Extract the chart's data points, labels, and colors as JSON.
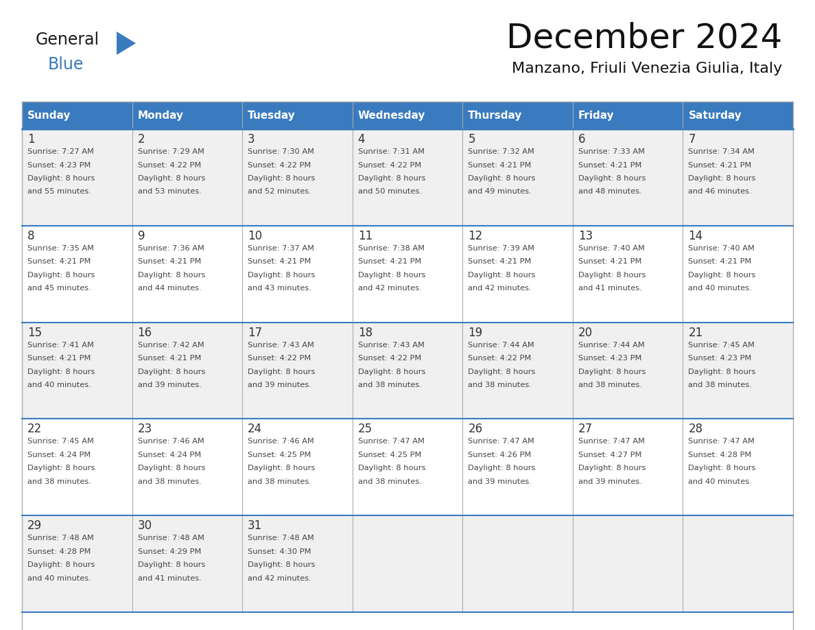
{
  "title": "December 2024",
  "subtitle": "Manzano, Friuli Venezia Giulia, Italy",
  "days_of_week": [
    "Sunday",
    "Monday",
    "Tuesday",
    "Wednesday",
    "Thursday",
    "Friday",
    "Saturday"
  ],
  "header_bg": "#3a7bbf",
  "header_text": "#ffffff",
  "row_bg_odd": "#f0f0f0",
  "row_bg_even": "#ffffff",
  "cell_border": "#aaaaaa",
  "day_num_color": "#333333",
  "text_color": "#444444",
  "title_color": "#111111",
  "logo_general_color": "#1a1a1a",
  "logo_blue_color": "#3a7bbf",
  "weeks": [
    [
      {
        "day": 1,
        "sunrise": "7:27 AM",
        "sunset": "4:23 PM",
        "daylight": "8 hours and 55 minutes."
      },
      {
        "day": 2,
        "sunrise": "7:29 AM",
        "sunset": "4:22 PM",
        "daylight": "8 hours and 53 minutes."
      },
      {
        "day": 3,
        "sunrise": "7:30 AM",
        "sunset": "4:22 PM",
        "daylight": "8 hours and 52 minutes."
      },
      {
        "day": 4,
        "sunrise": "7:31 AM",
        "sunset": "4:22 PM",
        "daylight": "8 hours and 50 minutes."
      },
      {
        "day": 5,
        "sunrise": "7:32 AM",
        "sunset": "4:21 PM",
        "daylight": "8 hours and 49 minutes."
      },
      {
        "day": 6,
        "sunrise": "7:33 AM",
        "sunset": "4:21 PM",
        "daylight": "8 hours and 48 minutes."
      },
      {
        "day": 7,
        "sunrise": "7:34 AM",
        "sunset": "4:21 PM",
        "daylight": "8 hours and 46 minutes."
      }
    ],
    [
      {
        "day": 8,
        "sunrise": "7:35 AM",
        "sunset": "4:21 PM",
        "daylight": "8 hours and 45 minutes."
      },
      {
        "day": 9,
        "sunrise": "7:36 AM",
        "sunset": "4:21 PM",
        "daylight": "8 hours and 44 minutes."
      },
      {
        "day": 10,
        "sunrise": "7:37 AM",
        "sunset": "4:21 PM",
        "daylight": "8 hours and 43 minutes."
      },
      {
        "day": 11,
        "sunrise": "7:38 AM",
        "sunset": "4:21 PM",
        "daylight": "8 hours and 42 minutes."
      },
      {
        "day": 12,
        "sunrise": "7:39 AM",
        "sunset": "4:21 PM",
        "daylight": "8 hours and 42 minutes."
      },
      {
        "day": 13,
        "sunrise": "7:40 AM",
        "sunset": "4:21 PM",
        "daylight": "8 hours and 41 minutes."
      },
      {
        "day": 14,
        "sunrise": "7:40 AM",
        "sunset": "4:21 PM",
        "daylight": "8 hours and 40 minutes."
      }
    ],
    [
      {
        "day": 15,
        "sunrise": "7:41 AM",
        "sunset": "4:21 PM",
        "daylight": "8 hours and 40 minutes."
      },
      {
        "day": 16,
        "sunrise": "7:42 AM",
        "sunset": "4:21 PM",
        "daylight": "8 hours and 39 minutes."
      },
      {
        "day": 17,
        "sunrise": "7:43 AM",
        "sunset": "4:22 PM",
        "daylight": "8 hours and 39 minutes."
      },
      {
        "day": 18,
        "sunrise": "7:43 AM",
        "sunset": "4:22 PM",
        "daylight": "8 hours and 38 minutes."
      },
      {
        "day": 19,
        "sunrise": "7:44 AM",
        "sunset": "4:22 PM",
        "daylight": "8 hours and 38 minutes."
      },
      {
        "day": 20,
        "sunrise": "7:44 AM",
        "sunset": "4:23 PM",
        "daylight": "8 hours and 38 minutes."
      },
      {
        "day": 21,
        "sunrise": "7:45 AM",
        "sunset": "4:23 PM",
        "daylight": "8 hours and 38 minutes."
      }
    ],
    [
      {
        "day": 22,
        "sunrise": "7:45 AM",
        "sunset": "4:24 PM",
        "daylight": "8 hours and 38 minutes."
      },
      {
        "day": 23,
        "sunrise": "7:46 AM",
        "sunset": "4:24 PM",
        "daylight": "8 hours and 38 minutes."
      },
      {
        "day": 24,
        "sunrise": "7:46 AM",
        "sunset": "4:25 PM",
        "daylight": "8 hours and 38 minutes."
      },
      {
        "day": 25,
        "sunrise": "7:47 AM",
        "sunset": "4:25 PM",
        "daylight": "8 hours and 38 minutes."
      },
      {
        "day": 26,
        "sunrise": "7:47 AM",
        "sunset": "4:26 PM",
        "daylight": "8 hours and 39 minutes."
      },
      {
        "day": 27,
        "sunrise": "7:47 AM",
        "sunset": "4:27 PM",
        "daylight": "8 hours and 39 minutes."
      },
      {
        "day": 28,
        "sunrise": "7:47 AM",
        "sunset": "4:28 PM",
        "daylight": "8 hours and 40 minutes."
      }
    ],
    [
      {
        "day": 29,
        "sunrise": "7:48 AM",
        "sunset": "4:28 PM",
        "daylight": "8 hours and 40 minutes."
      },
      {
        "day": 30,
        "sunrise": "7:48 AM",
        "sunset": "4:29 PM",
        "daylight": "8 hours and 41 minutes."
      },
      {
        "day": 31,
        "sunrise": "7:48 AM",
        "sunset": "4:30 PM",
        "daylight": "8 hours and 42 minutes."
      },
      null,
      null,
      null,
      null
    ]
  ]
}
